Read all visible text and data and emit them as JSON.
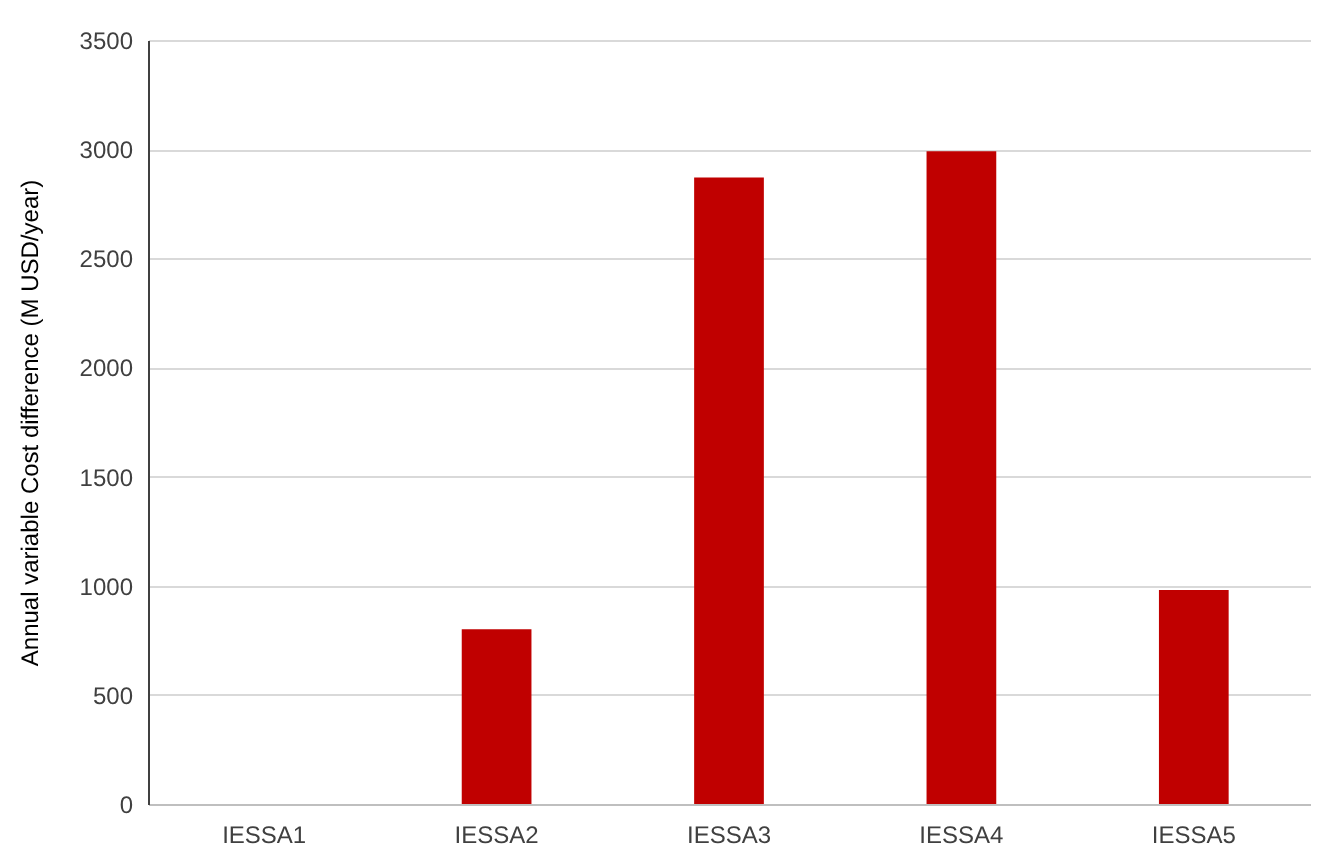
{
  "chart_data": {
    "type": "bar",
    "ylabel": "Annual variable  Cost difference (M USD/year)",
    "categories": [
      "IESSA1",
      "IESSA2",
      "IESSA3",
      "IESSA4",
      "IESSA5"
    ],
    "values": [
      0,
      800,
      2870,
      2990,
      980
    ],
    "color": "#c00000",
    "ylim": [
      0,
      3500
    ],
    "yticks": [
      0,
      500,
      1000,
      1500,
      2000,
      2500,
      3000,
      3500
    ],
    "grid": "y"
  }
}
